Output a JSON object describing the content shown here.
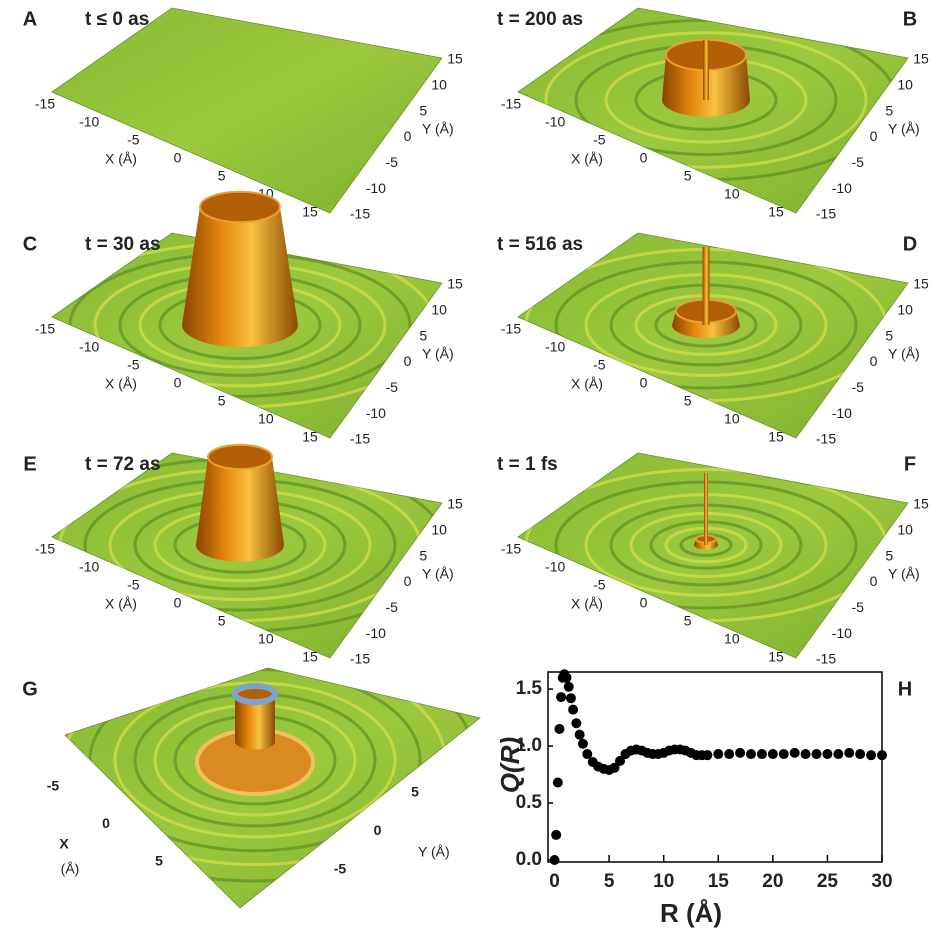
{
  "panels": [
    {
      "letter": "A",
      "title": "t ≤ 0 as",
      "xticks": [
        -15,
        -10,
        -5,
        0,
        5,
        10,
        15
      ],
      "yticks": [
        15,
        10,
        5,
        0,
        -5,
        -10,
        -15
      ],
      "xlabel": "X (Å)",
      "ylabel": "Y (Å)"
    },
    {
      "letter": "B",
      "title": "t = 200 as",
      "xticks": [
        -15,
        -10,
        -5,
        0,
        5,
        10,
        15
      ],
      "yticks": [
        15,
        10,
        5,
        0,
        -5,
        -10,
        -15
      ],
      "xlabel": "X (Å)",
      "ylabel": "Y (Å)"
    },
    {
      "letter": "C",
      "title": "t = 30 as",
      "xticks": [
        -15,
        -10,
        -5,
        0,
        5,
        10,
        15
      ],
      "yticks": [
        15,
        10,
        5,
        0,
        -5,
        -10,
        -15
      ],
      "xlabel": "X (Å)",
      "ylabel": "Y (Å)"
    },
    {
      "letter": "D",
      "title": "t = 516 as",
      "xticks": [
        -15,
        -10,
        -5,
        0,
        5,
        10,
        15
      ],
      "yticks": [
        15,
        10,
        5,
        0,
        -5,
        -10,
        -15
      ],
      "xlabel": "X (Å)",
      "ylabel": "Y (Å)"
    },
    {
      "letter": "E",
      "title": "t = 72 as",
      "xticks": [
        -15,
        -10,
        -5,
        0,
        5,
        10,
        15
      ],
      "yticks": [
        15,
        10,
        5,
        0,
        -5,
        -10,
        -15
      ],
      "xlabel": "X (Å)",
      "ylabel": "Y (Å)"
    },
    {
      "letter": "F",
      "title": "t = 1 fs",
      "xticks": [
        -15,
        -10,
        -5,
        0,
        5,
        10,
        15
      ],
      "yticks": [
        15,
        10,
        5,
        0,
        -5,
        -10,
        -15
      ],
      "xlabel": "X (Å)",
      "ylabel": "Y (Å)"
    },
    {
      "letter": "G",
      "xticks": [
        -5,
        0,
        5
      ],
      "yticks": [
        5,
        0,
        -5
      ],
      "xlabel": [
        "X",
        "(Å)"
      ],
      "ylabel": "Y (Å)"
    }
  ],
  "chart_data": {
    "type": "scatter",
    "panel_letter": "H",
    "xlabel": "R (Å)",
    "ylabel": "Q(R)",
    "color": "#000000",
    "x": [
      0,
      0.15,
      0.3,
      0.45,
      0.6,
      0.75,
      0.9,
      1.1,
      1.3,
      1.5,
      1.7,
      2.0,
      2.3,
      2.6,
      3.0,
      3.5,
      4.0,
      4.5,
      5.0,
      5.5,
      6.0,
      6.5,
      7.0,
      7.5,
      8.0,
      8.5,
      9.0,
      9.5,
      10,
      10.5,
      11,
      11.5,
      12,
      12.5,
      13,
      13.5,
      14,
      15,
      16,
      17,
      18,
      19,
      20,
      21,
      22,
      23,
      24,
      25,
      26,
      27,
      28,
      29,
      30
    ],
    "values": [
      0,
      0.22,
      0.68,
      1.15,
      1.43,
      1.6,
      1.63,
      1.6,
      1.52,
      1.42,
      1.32,
      1.2,
      1.1,
      1.02,
      0.93,
      0.86,
      0.82,
      0.8,
      0.79,
      0.81,
      0.87,
      0.93,
      0.96,
      0.97,
      0.96,
      0.94,
      0.93,
      0.93,
      0.94,
      0.96,
      0.97,
      0.97,
      0.96,
      0.94,
      0.92,
      0.92,
      0.92,
      0.93,
      0.93,
      0.94,
      0.93,
      0.93,
      0.93,
      0.93,
      0.94,
      0.93,
      0.93,
      0.93,
      0.93,
      0.94,
      0.93,
      0.92,
      0.92
    ],
    "xlim": [
      -0.6,
      30
    ],
    "ylim": [
      0,
      1.65
    ],
    "xticks": [
      0,
      5,
      10,
      15,
      20,
      25,
      30
    ],
    "yticks": [
      {
        "value": 0,
        "label": "0.0"
      },
      0.5,
      {
        "value": 1,
        "label": "1.0"
      },
      1.5
    ]
  }
}
